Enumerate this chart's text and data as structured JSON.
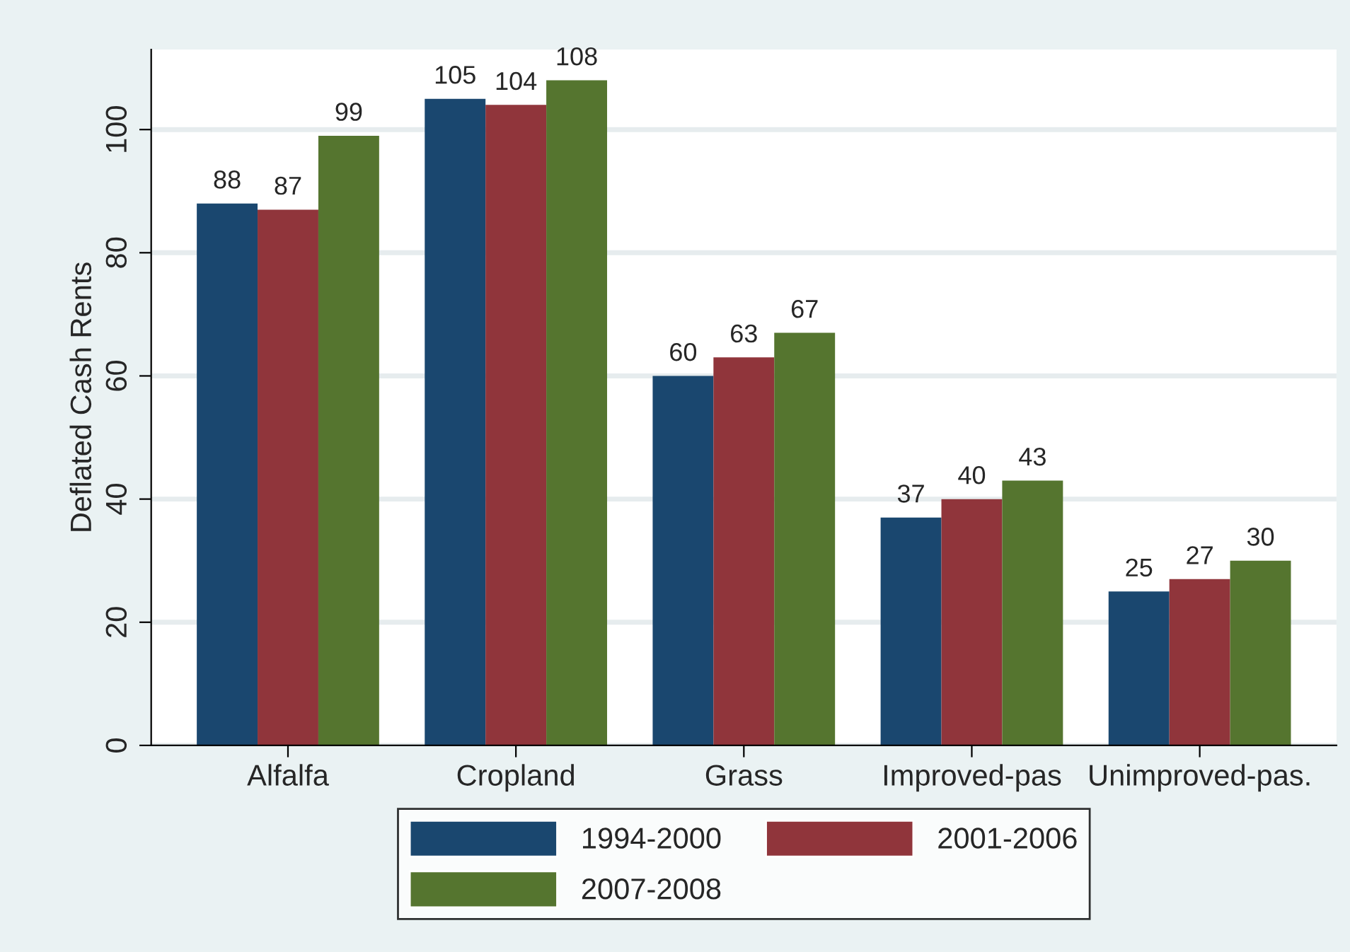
{
  "chart_data": {
    "type": "bar",
    "ylabel": "Deflated Cash Rents",
    "categories": [
      "Alfalfa",
      "Cropland",
      "Grass",
      "Improved-pas",
      "Unimproved-pas."
    ],
    "series": [
      {
        "name": "1994-2000",
        "color": "#1a476f",
        "values": [
          88,
          105,
          60,
          37,
          25
        ]
      },
      {
        "name": "2001-2006",
        "color": "#90353b",
        "values": [
          87,
          104,
          63,
          40,
          27
        ]
      },
      {
        "name": "2007-2008",
        "color": "#55752f",
        "values": [
          99,
          108,
          67,
          43,
          30
        ]
      }
    ],
    "ylim": [
      0,
      113
    ],
    "yticks": [
      0,
      20,
      40,
      60,
      80,
      100
    ],
    "grid": "y",
    "legend": "bottom",
    "data_labels": true
  }
}
